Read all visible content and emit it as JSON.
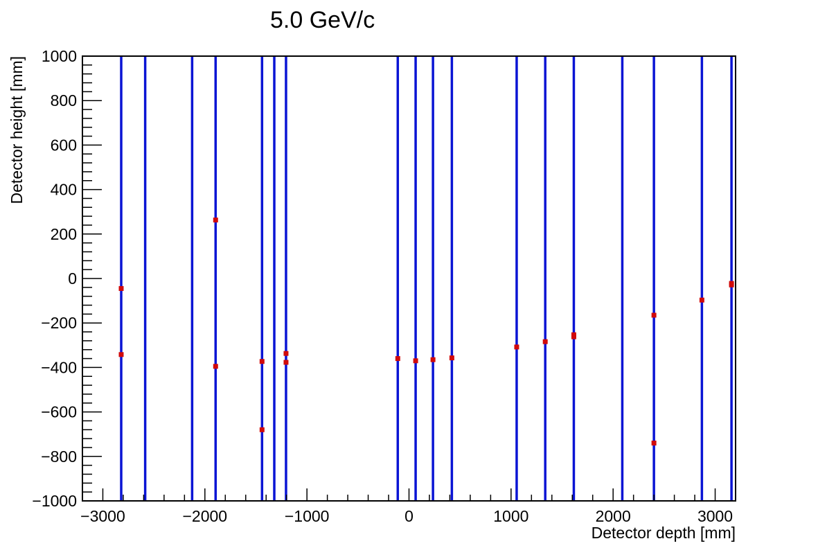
{
  "chart_data": {
    "type": "scatter",
    "title": "5.0 GeV/c",
    "xlabel": "Detector depth [mm]",
    "ylabel": "Detector height [mm]",
    "xlim": [
      -3200,
      3200
    ],
    "ylim": [
      -1000,
      1000
    ],
    "x_ticks": [
      -3000,
      -2000,
      -1000,
      0,
      1000,
      2000,
      3000
    ],
    "x_tick_labels": [
      "−3000",
      "−2000",
      "−1000",
      "0",
      "1000",
      "2000",
      "3000"
    ],
    "y_ticks": [
      -1000,
      -800,
      -600,
      -400,
      -200,
      0,
      200,
      400,
      600,
      800,
      1000
    ],
    "y_tick_labels": [
      "−1000",
      "−800",
      "−600",
      "−400",
      "−200",
      "0",
      "200",
      "400",
      "600",
      "800",
      "1000"
    ],
    "grid": false,
    "colors": {
      "planes": "#0a14d4",
      "hits": "#d10a0a",
      "axes": "#000000"
    },
    "detector_planes_x": [
      -2820,
      -2585,
      -2125,
      -1895,
      -1440,
      -1320,
      -1205,
      -110,
      65,
      235,
      420,
      1055,
      1335,
      1615,
      2090,
      2400,
      2870,
      3160
    ],
    "hits": [
      {
        "x": -2820,
        "y": -45
      },
      {
        "x": -2820,
        "y": -342
      },
      {
        "x": -1895,
        "y": 263
      },
      {
        "x": -1895,
        "y": -395
      },
      {
        "x": -1440,
        "y": -373
      },
      {
        "x": -1440,
        "y": -680
      },
      {
        "x": -1205,
        "y": -337
      },
      {
        "x": -1205,
        "y": -377
      },
      {
        "x": -110,
        "y": -360
      },
      {
        "x": 65,
        "y": -370
      },
      {
        "x": 235,
        "y": -365
      },
      {
        "x": 420,
        "y": -357
      },
      {
        "x": 1055,
        "y": -308
      },
      {
        "x": 1335,
        "y": -284
      },
      {
        "x": 1615,
        "y": -262
      },
      {
        "x": 1615,
        "y": -253
      },
      {
        "x": 2400,
        "y": -165
      },
      {
        "x": 2400,
        "y": -740
      },
      {
        "x": 2870,
        "y": -97
      },
      {
        "x": 3160,
        "y": -22
      },
      {
        "x": 3160,
        "y": -29
      }
    ]
  }
}
